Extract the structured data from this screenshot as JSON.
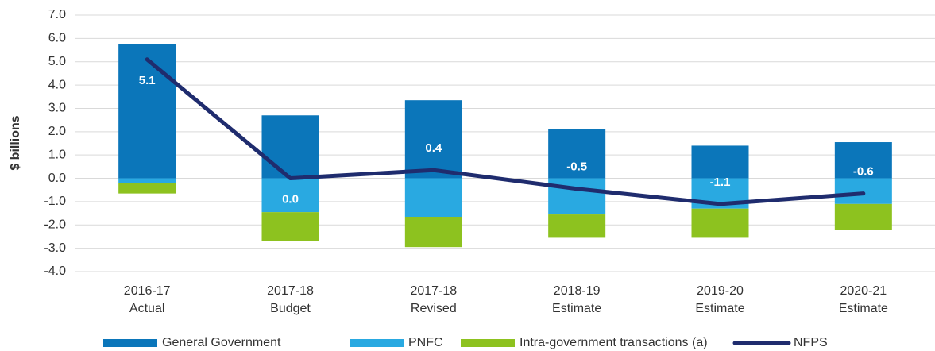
{
  "chart_data": {
    "type": "bar",
    "y_label": "$ billions",
    "categories": [
      [
        "2016-17",
        "Actual"
      ],
      [
        "2017-18",
        "Budget"
      ],
      [
        "2017-18",
        "Revised"
      ],
      [
        "2018-19",
        "Estimate"
      ],
      [
        "2019-20",
        "Estimate"
      ],
      [
        "2020-21",
        "Estimate"
      ]
    ],
    "series": [
      {
        "name": "General Government",
        "color": "#0b76ba",
        "type": "bar",
        "values": [
          5.75,
          2.7,
          3.35,
          2.1,
          1.4,
          1.55
        ]
      },
      {
        "name": "PNFC",
        "color": "#29a9e1",
        "type": "bar",
        "values": [
          -0.2,
          -1.45,
          -1.65,
          -1.55,
          -1.3,
          -1.1
        ]
      },
      {
        "name": "Intra-government transactions (a)",
        "color": "#8dc21f",
        "type": "bar",
        "values": [
          -0.45,
          -1.25,
          -1.3,
          -1.0,
          -1.25,
          -1.1
        ]
      },
      {
        "name": "NFPS",
        "color": "#1f2c6e",
        "type": "line",
        "values": [
          5.1,
          0.0,
          0.35,
          -0.45,
          -1.1,
          -0.65
        ],
        "value_labels": [
          "5.1",
          "0.0",
          "0.4",
          "-0.5",
          "-1.1",
          "-0.6"
        ]
      }
    ],
    "ylim": [
      -4,
      7
    ],
    "yticks": [
      {
        "value": -4,
        "label": "-4.0"
      },
      {
        "value": -3,
        "label": "-3.0"
      },
      {
        "value": -2,
        "label": "-2.0"
      },
      {
        "value": -1,
        "label": "-1.0"
      },
      {
        "value": 0,
        "label": "0.0"
      },
      {
        "value": 1,
        "label": "1.0"
      },
      {
        "value": 2,
        "label": "2.0"
      },
      {
        "value": 3,
        "label": "3.0"
      },
      {
        "value": 4,
        "label": "4.0"
      },
      {
        "value": 5,
        "label": "5.0"
      },
      {
        "value": 6,
        "label": "6.0"
      },
      {
        "value": 7,
        "label": "7.0"
      }
    ],
    "grid": true,
    "legend": "bottom"
  }
}
